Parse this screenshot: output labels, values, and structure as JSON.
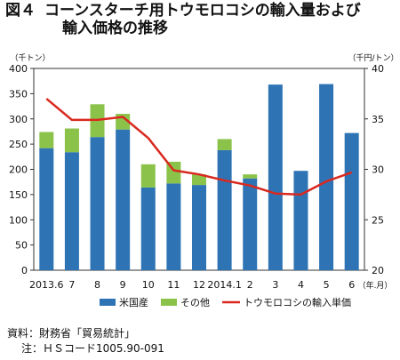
{
  "figure": {
    "label": "図４",
    "title_line1": "コーンスターチ用トウモロコシの輸入量および",
    "title_line2": "輸入価格の推移"
  },
  "source_text": "資料：財務省「貿易統計」",
  "note_text": "注：ＨＳコード1005.90-091",
  "chart_data": {
    "type": "bar",
    "categories": [
      "2013.6",
      "7",
      "8",
      "9",
      "10",
      "11",
      "12",
      "2014.1",
      "2",
      "3",
      "4",
      "5",
      "6"
    ],
    "x_unit_label": "（年.月）",
    "left_axis": {
      "unit_label": "（千トン）",
      "ylim": [
        0,
        400
      ],
      "ticks": [
        0,
        50,
        100,
        150,
        200,
        250,
        300,
        350,
        400
      ]
    },
    "right_axis": {
      "unit_label": "（千円/トン）",
      "ylim": [
        20,
        40
      ],
      "ticks": [
        20,
        25,
        30,
        35,
        40
      ]
    },
    "grid": false,
    "legend_position": "bottom",
    "series": [
      {
        "name": "米国産",
        "kind": "bar",
        "stack": "import",
        "axis": "left",
        "color": "#2e74b5",
        "values": [
          242,
          234,
          264,
          279,
          164,
          172,
          169,
          238,
          182,
          368,
          197,
          369,
          272
        ]
      },
      {
        "name": "その他",
        "kind": "bar",
        "stack": "import",
        "axis": "left",
        "color": "#8bc34a",
        "values": [
          32,
          47,
          65,
          31,
          46,
          43,
          21,
          22,
          8,
          0,
          0,
          0,
          0
        ]
      },
      {
        "name": "トウモロコシの輸入単価",
        "kind": "line",
        "axis": "right",
        "color": "#d9281e",
        "values": [
          37.0,
          34.9,
          34.9,
          35.2,
          33.1,
          29.9,
          29.5,
          28.9,
          28.4,
          27.6,
          27.5,
          28.8,
          29.7
        ]
      }
    ]
  }
}
